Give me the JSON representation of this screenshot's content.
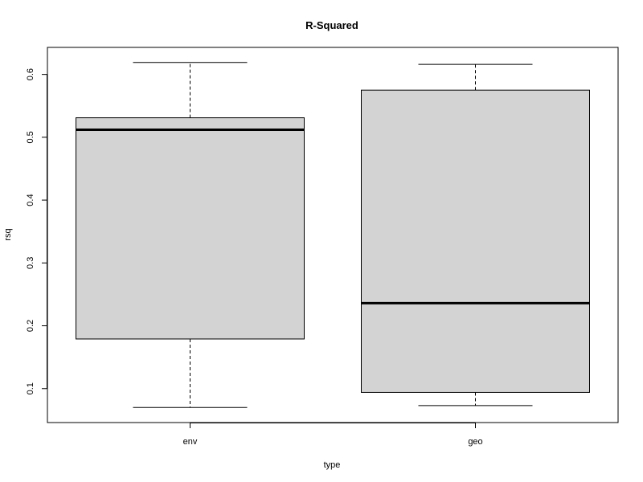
{
  "chart_data": {
    "type": "boxplot",
    "title": "R-Squared",
    "xlabel": "type",
    "ylabel": "rsq",
    "categories": [
      "env",
      "geo"
    ],
    "boxes": [
      {
        "category": "env",
        "whisker_low": 0.07,
        "q1": 0.179,
        "median": 0.512,
        "q3": 0.531,
        "whisker_high": 0.619
      },
      {
        "category": "geo",
        "whisker_low": 0.073,
        "q1": 0.094,
        "median": 0.236,
        "q3": 0.575,
        "whisker_high": 0.616
      }
    ],
    "yticks": [
      "0.1",
      "0.2",
      "0.3",
      "0.4",
      "0.5",
      "0.6"
    ],
    "ylim": [
      0.046,
      0.643
    ],
    "box_color": "#d3d3d3",
    "grid": false,
    "legend": "none"
  }
}
